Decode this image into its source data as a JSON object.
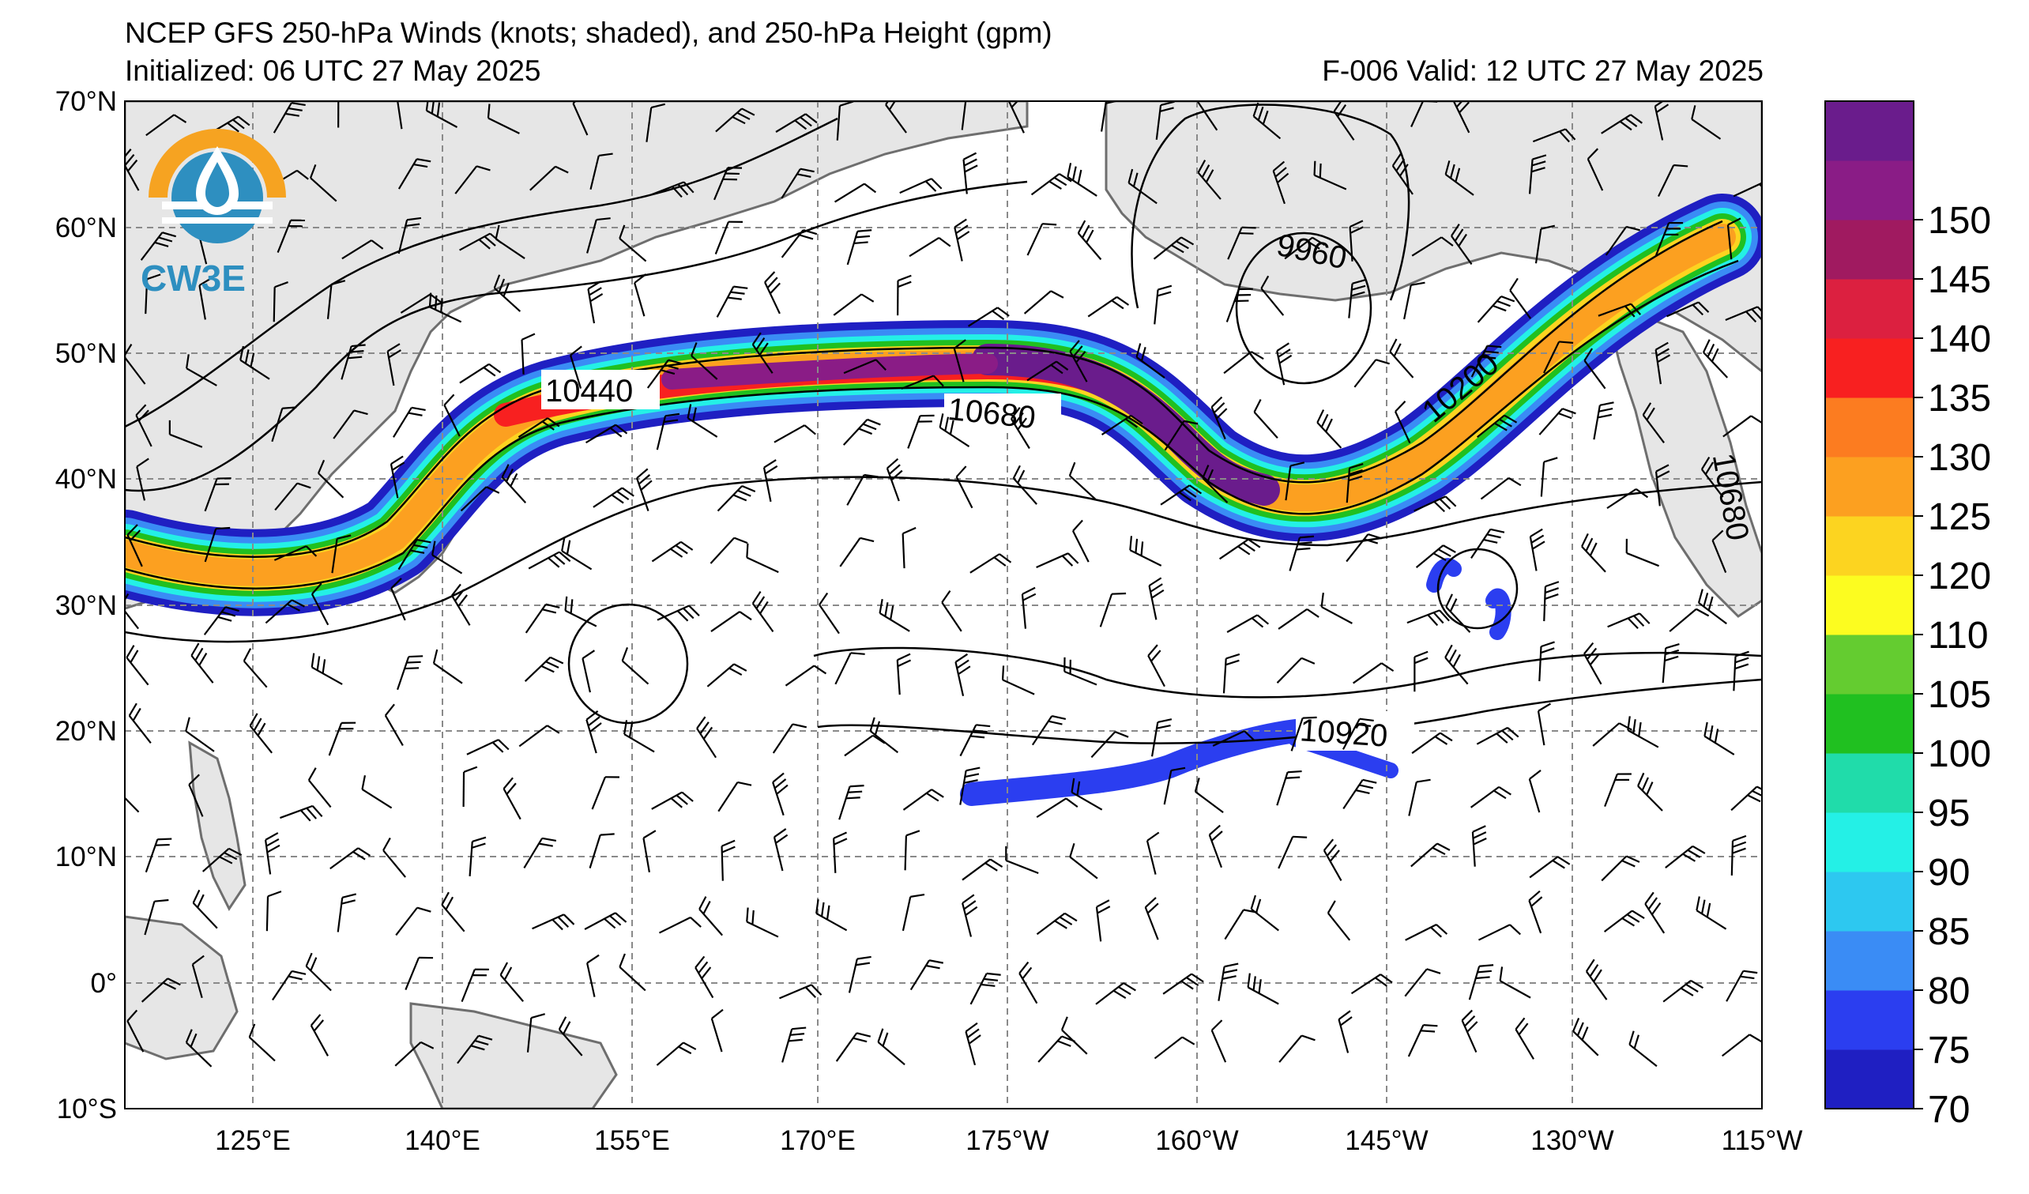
{
  "header": {
    "title_line1": "NCEP GFS 250-hPa Winds (knots; shaded), and 250-hPa Height (gpm)",
    "title_line2_left": "Initialized: 06 UTC 27 May 2025",
    "title_line2_right": "F-006  Valid: 12 UTC 27 May 2025"
  },
  "logo": {
    "text": "CW3E",
    "colors": {
      "orange": "#f6a321",
      "blue": "#2e8fc0"
    }
  },
  "map": {
    "lat_labels": [
      "70°N",
      "60°N",
      "50°N",
      "40°N",
      "30°N",
      "20°N",
      "10°N",
      "0°",
      "10°S"
    ],
    "lon_labels": [
      "125°E",
      "140°E",
      "155°E",
      "170°E",
      "175°W",
      "160°W",
      "145°W",
      "130°W",
      "115°W"
    ],
    "height_contour_labels": [
      "10440",
      "10680",
      "9960",
      "10200",
      "10680",
      "10920"
    ],
    "land_color": "#e6e6e6",
    "coast_color": "#6e6e6e",
    "grid_style": "dashed gray"
  },
  "colorbar": {
    "levels": [
      70,
      75,
      80,
      85,
      90,
      95,
      100,
      105,
      110,
      120,
      125,
      130,
      135,
      140,
      145,
      150
    ],
    "labels": [
      "150",
      "145",
      "140",
      "135",
      "130",
      "125",
      "120",
      "110",
      "105",
      "100",
      "95",
      "90",
      "85",
      "80",
      "75",
      "70"
    ],
    "colors": [
      "#1f1fc2",
      "#2b3ef0",
      "#3a8cf5",
      "#2dc8f0",
      "#24f0e6",
      "#20dcaa",
      "#20c020",
      "#64cc30",
      "#fcfc20",
      "#fcd420",
      "#fca020",
      "#fc7c20",
      "#f82020",
      "#dc2040",
      "#a01a60",
      "#8a1c86",
      "#6a1c8c"
    ]
  }
}
